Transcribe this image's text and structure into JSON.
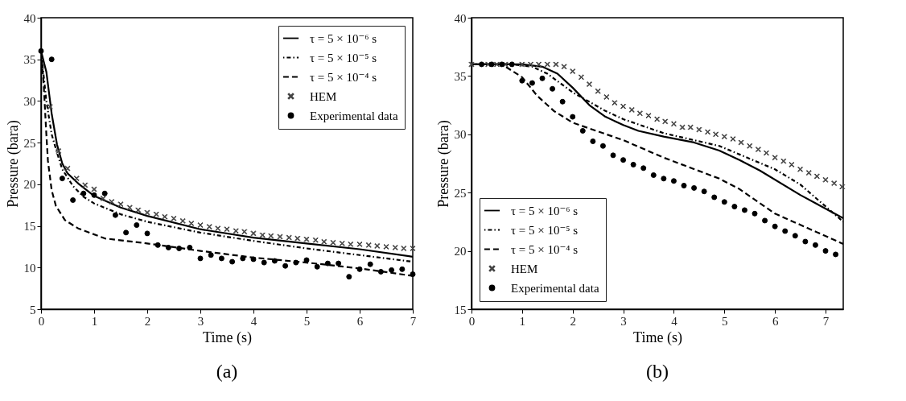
{
  "chart_data": [
    {
      "type": "line",
      "title": "(a)",
      "xlabel": "Time (s)",
      "ylabel": "Pressure (bara)",
      "xlim": [
        0,
        7
      ],
      "ylim": [
        5,
        40
      ],
      "xticks": [
        0,
        1,
        2,
        3,
        4,
        5,
        6,
        7
      ],
      "yticks": [
        5,
        10,
        15,
        20,
        25,
        30,
        35,
        40
      ],
      "legend": "top right",
      "series": [
        {
          "name": "τ = 5 × 10⁻⁶ s",
          "type": "line",
          "color": "#000000",
          "line_style": "solid",
          "x": [
            0,
            0.1,
            0.2,
            0.3,
            0.4,
            0.5,
            0.7,
            1.0,
            1.5,
            2,
            3,
            4,
            5,
            6,
            7
          ],
          "values": [
            36,
            33.5,
            28.5,
            24.8,
            22.5,
            21.3,
            20.1,
            18.6,
            17.2,
            16.2,
            14.6,
            13.6,
            12.9,
            12.2,
            11.3
          ]
        },
        {
          "name": "τ = 5 × 10⁻⁵ s",
          "type": "line",
          "color": "#000000",
          "line_style": "dotted",
          "x": [
            0,
            0.05,
            0.1,
            0.2,
            0.3,
            0.4,
            0.6,
            0.8,
            1.0,
            1.5,
            2,
            3,
            4,
            5,
            6,
            7
          ],
          "values": [
            36,
            33,
            30,
            26,
            23.8,
            21.8,
            19.8,
            18.5,
            17.7,
            16.4,
            15.5,
            14.2,
            13.2,
            12.3,
            11.5,
            10.7
          ]
        },
        {
          "name": "τ = 5 × 10⁻⁴ s",
          "type": "line",
          "color": "#000000",
          "line_style": "dashed",
          "x": [
            0,
            0.05,
            0.1,
            0.13,
            0.2,
            0.28,
            0.45,
            0.7,
            1.2,
            2,
            3,
            4,
            5,
            6,
            7
          ],
          "values": [
            36,
            32,
            26,
            22.8,
            19.3,
            17.4,
            15.7,
            14.7,
            13.5,
            12.9,
            12.0,
            11.2,
            10.6,
            9.9,
            9.0
          ]
        },
        {
          "name": "HEM",
          "type": "scatter",
          "color": "#444444",
          "marker": "cross",
          "x": [
            0.17,
            0.33,
            0.5,
            0.67,
            0.83,
            1.0,
            1.17,
            1.33,
            1.5,
            1.67,
            1.83,
            2.0,
            2.17,
            2.33,
            2.5,
            2.67,
            2.83,
            3.0,
            3.17,
            3.33,
            3.5,
            3.67,
            3.83,
            4.0,
            4.17,
            4.33,
            4.5,
            4.67,
            4.83,
            5.0,
            5.17,
            5.33,
            5.5,
            5.67,
            5.83,
            6.0,
            6.17,
            6.33,
            6.5,
            6.67,
            6.83,
            7.0
          ],
          "values": [
            29.3,
            24.0,
            21.9,
            20.7,
            19.9,
            19.4,
            18.3,
            17.9,
            17.6,
            17.2,
            16.9,
            16.6,
            16.4,
            16.1,
            15.9,
            15.6,
            15.3,
            15.1,
            14.9,
            14.7,
            14.6,
            14.4,
            14.3,
            14.1,
            13.9,
            13.8,
            13.7,
            13.6,
            13.5,
            13.4,
            13.3,
            13.1,
            13.0,
            12.9,
            12.8,
            12.8,
            12.7,
            12.6,
            12.5,
            12.4,
            12.3,
            12.3
          ]
        },
        {
          "name": "Experimental data",
          "type": "scatter",
          "color": "#000000",
          "marker": "circle",
          "x": [
            0,
            0.2,
            0.4,
            0.6,
            0.8,
            1.0,
            1.2,
            1.4,
            1.6,
            1.8,
            2.0,
            2.2,
            2.4,
            2.6,
            2.8,
            3.0,
            3.2,
            3.4,
            3.6,
            3.8,
            4.0,
            4.2,
            4.4,
            4.6,
            4.8,
            5.0,
            5.2,
            5.4,
            5.6,
            5.8,
            6.0,
            6.2,
            6.4,
            6.6,
            6.8,
            7.0
          ],
          "values": [
            36,
            35,
            20.7,
            18.1,
            18.9,
            18.7,
            18.9,
            16.3,
            14.2,
            15.1,
            14.1,
            12.7,
            12.4,
            12.3,
            12.4,
            11.1,
            11.5,
            11.1,
            10.7,
            11.1,
            11.0,
            10.6,
            10.8,
            10.2,
            10.6,
            10.9,
            10.1,
            10.5,
            10.5,
            8.9,
            9.8,
            10.4,
            9.5,
            9.7,
            9.8,
            9.2
          ]
        }
      ]
    },
    {
      "type": "line",
      "title": "(b)",
      "xlabel": "Time (s)",
      "ylabel": "Pressure (bara)",
      "xlim": [
        0,
        7.35
      ],
      "ylim": [
        15,
        40
      ],
      "xticks": [
        0,
        1,
        2,
        3,
        4,
        5,
        6,
        7
      ],
      "yticks": [
        15,
        20,
        25,
        30,
        35,
        40
      ],
      "legend": "bottom left",
      "series": [
        {
          "name": "τ = 5 × 10⁻⁶ s",
          "type": "line",
          "color": "#000000",
          "line_style": "solid",
          "x": [
            0,
            1,
            1.4,
            1.7,
            2,
            2.33,
            2.65,
            3,
            3.3,
            3.8,
            4.4,
            4.9,
            5.3,
            5.7,
            6.5,
            7.35
          ],
          "values": [
            36,
            36,
            35.8,
            35.2,
            34.0,
            32.5,
            31.5,
            30.8,
            30.3,
            29.8,
            29.3,
            28.6,
            27.8,
            26.9,
            24.8,
            22.8
          ]
        },
        {
          "name": "τ = 5 × 10⁻⁵ s",
          "type": "line",
          "color": "#000000",
          "line_style": "dotted",
          "x": [
            0,
            0.8,
            1.2,
            1.5,
            2,
            2.65,
            3,
            3.8,
            4.9,
            6,
            6.5,
            7.35
          ],
          "values": [
            36,
            36,
            35.8,
            35.2,
            33.6,
            32.0,
            31.3,
            30.1,
            29.0,
            27.0,
            25.7,
            22.5
          ]
        },
        {
          "name": "τ = 5 × 10⁻⁴ s",
          "type": "line",
          "color": "#000000",
          "line_style": "dashed",
          "x": [
            0,
            0.6,
            1.0,
            1.3,
            1.63,
            2,
            2.33,
            3,
            3.8,
            4.9,
            5.3,
            6,
            7.35
          ],
          "values": [
            36,
            36,
            34.9,
            33.3,
            32.0,
            31.0,
            30.5,
            29.5,
            28.0,
            26.2,
            25.3,
            23.2,
            20.6
          ]
        },
        {
          "name": "HEM",
          "type": "scatter",
          "color": "#444444",
          "marker": "cross",
          "x": [
            0,
            0.17,
            0.33,
            0.5,
            0.67,
            0.83,
            1.0,
            1.17,
            1.33,
            1.5,
            1.67,
            1.83,
            2.0,
            2.17,
            2.33,
            2.5,
            2.67,
            2.83,
            3.0,
            3.17,
            3.33,
            3.5,
            3.67,
            3.83,
            4.0,
            4.17,
            4.33,
            4.5,
            4.67,
            4.83,
            5.0,
            5.17,
            5.33,
            5.5,
            5.67,
            5.83,
            6.0,
            6.17,
            6.33,
            6.5,
            6.67,
            6.83,
            7.0,
            7.17,
            7.33
          ],
          "values": [
            36,
            null,
            36,
            36,
            36,
            null,
            36,
            36,
            36,
            36,
            36,
            35.8,
            35.4,
            34.9,
            34.3,
            33.7,
            33.2,
            32.7,
            32.4,
            32.1,
            31.8,
            31.6,
            31.3,
            31.1,
            30.9,
            30.6,
            30.6,
            30.4,
            30.2,
            30.0,
            29.8,
            29.6,
            29.3,
            29.0,
            28.7,
            28.4,
            28.0,
            27.7,
            27.4,
            27.0,
            26.7,
            26.4,
            26.1,
            25.8,
            25.5
          ]
        },
        {
          "name": "Experimental data",
          "type": "scatter",
          "color": "#000000",
          "marker": "circle",
          "x": [
            0.2,
            0.4,
            0.6,
            0.8,
            1.0,
            1.2,
            1.4,
            1.6,
            1.8,
            2.0,
            2.2,
            2.4,
            2.6,
            2.8,
            3.0,
            3.2,
            3.4,
            3.6,
            3.8,
            4.0,
            4.2,
            4.4,
            4.6,
            4.8,
            5.0,
            5.2,
            5.4,
            5.6,
            5.8,
            6.0,
            6.2,
            6.4,
            6.6,
            6.8,
            7.0,
            7.2
          ],
          "values": [
            36,
            36,
            36,
            36,
            34.6,
            34.4,
            34.8,
            33.9,
            32.8,
            31.5,
            30.3,
            29.4,
            29.0,
            28.2,
            27.8,
            27.4,
            27.1,
            26.5,
            26.2,
            26.0,
            25.6,
            25.4,
            25.1,
            24.6,
            24.2,
            23.8,
            23.5,
            23.2,
            22.6,
            22.1,
            21.7,
            21.3,
            20.8,
            20.5,
            20.0,
            19.7
          ]
        }
      ]
    }
  ]
}
